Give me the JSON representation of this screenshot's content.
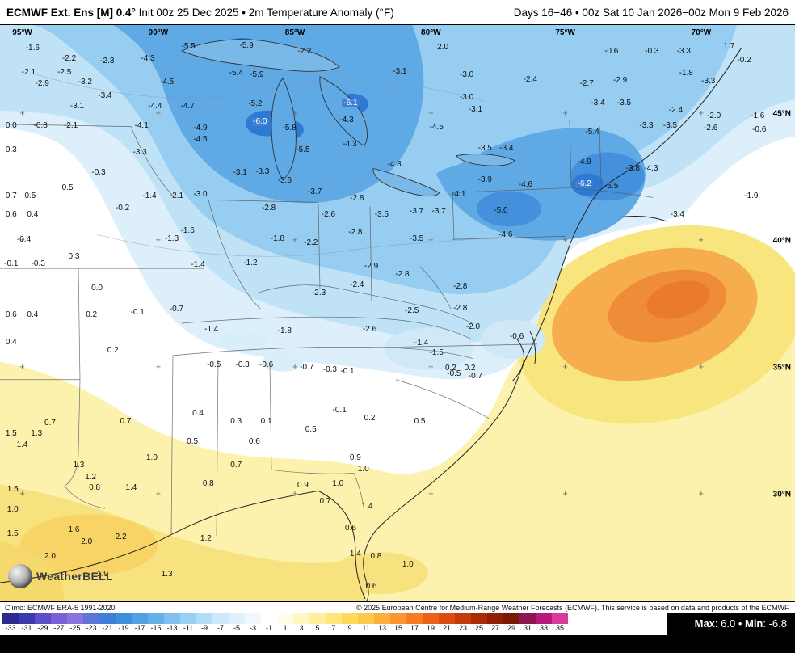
{
  "header": {
    "title_bold": "ECMWF Ext. Ens [M] 0.4°",
    "title_rest": " Init 00z 25 Dec 2025 • 2m Temperature Anomaly (°F)",
    "valid_range": "Days 16−46 • 00z Sat 10 Jan 2026−00z Mon 9 Feb 2026"
  },
  "logo": {
    "text": "WeatherBELL"
  },
  "attribution": {
    "left": "Climo: ECMWF ERA-5 1991-2020",
    "right": "© 2025 European Centre for Medium-Range Weather Forecasts (ECMWF). This service is based on data and products of the ECMWF."
  },
  "stats": {
    "max_label": "Max",
    "max_value": "6.0",
    "sep": "•",
    "min_label": "Min",
    "min_value": "-6.8"
  },
  "colorbar": {
    "ticks": [
      "-33",
      "-31",
      "-29",
      "-27",
      "-25",
      "-23",
      "-21",
      "-19",
      "-17",
      "-15",
      "-13",
      "-11",
      "-9",
      "-7",
      "-5",
      "-3",
      "-1",
      "1",
      "3",
      "5",
      "7",
      "9",
      "11",
      "13",
      "15",
      "17",
      "19",
      "21",
      "23",
      "25",
      "27",
      "29",
      "31",
      "33",
      "35"
    ],
    "colors": [
      "#2b2b8f",
      "#3a3aad",
      "#5a4fc8",
      "#7a62d6",
      "#8a74dc",
      "#5f74d8",
      "#3f7fd8",
      "#3b8fdd",
      "#50a0e2",
      "#66b0e8",
      "#7fc0ee",
      "#99cff2",
      "#b3dcf6",
      "#cce8fa",
      "#e0f1fc",
      "#f0f8fe",
      "#ffffff",
      "#fffde8",
      "#fff7c2",
      "#ffef9c",
      "#ffe678",
      "#ffd95c",
      "#fec84b",
      "#fdb03c",
      "#fb952e",
      "#f67b22",
      "#ea6118",
      "#d94b10",
      "#c2390b",
      "#a82b07",
      "#8f2005",
      "#7a1804",
      "#8f1550",
      "#b81a7a",
      "#d93a9c"
    ]
  },
  "map": {
    "lon_labels": [
      {
        "text": "95°W",
        "x": 2.8
      },
      {
        "text": "90°W",
        "x": 19.9
      },
      {
        "text": "85°W",
        "x": 37.1
      },
      {
        "text": "80°W",
        "x": 54.2
      },
      {
        "text": "75°W",
        "x": 71.1
      },
      {
        "text": "70°W",
        "x": 88.2
      }
    ],
    "lat_labels": [
      {
        "text": "45°N",
        "y": 15.4
      },
      {
        "text": "40°N",
        "y": 37.5
      },
      {
        "text": "35°N",
        "y": 59.4
      },
      {
        "text": "30°N",
        "y": 81.5
      }
    ],
    "grid": {
      "lon_pct": [
        2.8,
        19.9,
        37.1,
        54.2,
        71.1,
        88.2
      ],
      "lat_pct": [
        15.4,
        37.5,
        59.4,
        81.5
      ]
    },
    "values": [
      {
        "v": "-1.6",
        "x": 4.1,
        "y": 4.1
      },
      {
        "v": "-2.2",
        "x": 8.7,
        "y": 5.9
      },
      {
        "v": "-2.3",
        "x": 13.5,
        "y": 6.3
      },
      {
        "v": "-4.3",
        "x": 18.6,
        "y": 5.9
      },
      {
        "v": "-5.5",
        "x": 23.7,
        "y": 3.8
      },
      {
        "v": "-5.9",
        "x": 31.0,
        "y": 3.6
      },
      {
        "v": "-2.2",
        "x": 38.3,
        "y": 4.6
      },
      {
        "v": "2.0",
        "x": 55.7,
        "y": 3.9
      },
      {
        "v": "-0.6",
        "x": 76.9,
        "y": 4.6
      },
      {
        "v": "-0.3",
        "x": 82.0,
        "y": 4.6
      },
      {
        "v": "-3.3",
        "x": 86.0,
        "y": 4.6
      },
      {
        "v": "1.7",
        "x": 91.7,
        "y": 3.8
      },
      {
        "v": "-0.2",
        "x": 93.6,
        "y": 6.2
      },
      {
        "v": "-2.1",
        "x": 3.6,
        "y": 8.3
      },
      {
        "v": "-2.5",
        "x": 8.1,
        "y": 8.3
      },
      {
        "v": "-2.9",
        "x": 5.3,
        "y": 10.2
      },
      {
        "v": "-3.2",
        "x": 10.7,
        "y": 9.9
      },
      {
        "v": "-4.5",
        "x": 21.0,
        "y": 9.9
      },
      {
        "v": "-5.4",
        "x": 29.7,
        "y": 8.4
      },
      {
        "v": "-5.9",
        "x": 32.3,
        "y": 8.7
      },
      {
        "v": "-3.1",
        "x": 50.3,
        "y": 8.1
      },
      {
        "v": "-3.0",
        "x": 58.7,
        "y": 8.7
      },
      {
        "v": "-2.4",
        "x": 66.7,
        "y": 9.5
      },
      {
        "v": "-2.7",
        "x": 73.8,
        "y": 10.2
      },
      {
        "v": "-2.9",
        "x": 78.0,
        "y": 9.7
      },
      {
        "v": "-1.8",
        "x": 86.3,
        "y": 8.4
      },
      {
        "v": "-3.3",
        "x": 89.1,
        "y": 9.8
      },
      {
        "v": "-3.1",
        "x": 9.7,
        "y": 14.1
      },
      {
        "v": "-3.4",
        "x": 13.2,
        "y": 12.3
      },
      {
        "v": "-4.4",
        "x": 19.5,
        "y": 14.1
      },
      {
        "v": "-4.7",
        "x": 23.6,
        "y": 14.1
      },
      {
        "v": "-5.2",
        "x": 32.1,
        "y": 13.7
      },
      {
        "v": "-6.0",
        "x": 32.7,
        "y": 16.8,
        "hl": true
      },
      {
        "v": "-5.8",
        "x": 36.4,
        "y": 17.9
      },
      {
        "v": "-6.1",
        "x": 44.1,
        "y": 13.6,
        "hl": true
      },
      {
        "v": "-4.3",
        "x": 43.6,
        "y": 16.6
      },
      {
        "v": "-4.5",
        "x": 54.9,
        "y": 17.8
      },
      {
        "v": "-3.0",
        "x": 58.7,
        "y": 12.6
      },
      {
        "v": "-3.1",
        "x": 59.8,
        "y": 14.7
      },
      {
        "v": "-3.4",
        "x": 75.2,
        "y": 13.6
      },
      {
        "v": "-3.5",
        "x": 78.5,
        "y": 13.6
      },
      {
        "v": "-2.4",
        "x": 85.0,
        "y": 14.8
      },
      {
        "v": "-2.0",
        "x": 89.8,
        "y": 15.8
      },
      {
        "v": "-1.6",
        "x": 95.3,
        "y": 15.8
      },
      {
        "v": "0.0",
        "x": 1.4,
        "y": 17.6
      },
      {
        "v": "-0.8",
        "x": 5.1,
        "y": 17.6
      },
      {
        "v": "-2.1",
        "x": 8.9,
        "y": 17.6
      },
      {
        "v": "-4.1",
        "x": 17.8,
        "y": 17.5
      },
      {
        "v": "-4.9",
        "x": 25.2,
        "y": 17.9
      },
      {
        "v": "-4.5",
        "x": 25.2,
        "y": 19.9
      },
      {
        "v": "-5.5",
        "x": 38.1,
        "y": 21.7
      },
      {
        "v": "-5.4",
        "x": 74.5,
        "y": 18.6
      },
      {
        "v": "-3.3",
        "x": 81.3,
        "y": 17.6
      },
      {
        "v": "-3.5",
        "x": 84.3,
        "y": 17.6
      },
      {
        "v": "-2.6",
        "x": 89.4,
        "y": 17.9
      },
      {
        "v": "-0.6",
        "x": 95.5,
        "y": 18.2
      },
      {
        "v": "0.3",
        "x": 1.4,
        "y": 21.8
      },
      {
        "v": "-3.3",
        "x": 17.6,
        "y": 22.1
      },
      {
        "v": "-4.3",
        "x": 44.0,
        "y": 20.8
      },
      {
        "v": "-3.5",
        "x": 61.0,
        "y": 21.5
      },
      {
        "v": "-3.4",
        "x": 63.7,
        "y": 21.5
      },
      {
        "v": "-0.3",
        "x": 12.4,
        "y": 25.7
      },
      {
        "v": "0.5",
        "x": 8.5,
        "y": 28.4
      },
      {
        "v": "-3.1",
        "x": 30.2,
        "y": 25.6
      },
      {
        "v": "-3.3",
        "x": 33.0,
        "y": 25.5
      },
      {
        "v": "-3.6",
        "x": 35.8,
        "y": 27.1
      },
      {
        "v": "-4.8",
        "x": 49.6,
        "y": 24.2
      },
      {
        "v": "-3.9",
        "x": 61.0,
        "y": 26.9
      },
      {
        "v": "-4.6",
        "x": 66.1,
        "y": 27.8
      },
      {
        "v": "-4.9",
        "x": 73.5,
        "y": 23.9
      },
      {
        "v": "-3.8",
        "x": 79.6,
        "y": 24.9
      },
      {
        "v": "-4.3",
        "x": 81.9,
        "y": 24.9
      },
      {
        "v": "0.7",
        "x": 1.4,
        "y": 29.8
      },
      {
        "v": "0.5",
        "x": 3.8,
        "y": 29.8
      },
      {
        "v": "-1.4",
        "x": 18.8,
        "y": 29.7
      },
      {
        "v": "-2.1",
        "x": 22.2,
        "y": 29.7
      },
      {
        "v": "-3.0",
        "x": 25.2,
        "y": 29.4
      },
      {
        "v": "-3.7",
        "x": 39.6,
        "y": 29.1
      },
      {
        "v": "-2.8",
        "x": 44.9,
        "y": 30.1
      },
      {
        "v": "-4.1",
        "x": 57.7,
        "y": 29.5
      },
      {
        "v": "-5.0",
        "x": 63.0,
        "y": 32.2
      },
      {
        "v": "-6.2",
        "x": 73.5,
        "y": 27.6,
        "hl": true
      },
      {
        "v": "-5.5",
        "x": 76.9,
        "y": 28.1
      },
      {
        "v": "-1.9",
        "x": 94.5,
        "y": 29.7
      },
      {
        "v": "0.6",
        "x": 1.4,
        "y": 32.9
      },
      {
        "v": "0.4",
        "x": 4.1,
        "y": 32.9
      },
      {
        "v": "-0.2",
        "x": 15.4,
        "y": 31.9
      },
      {
        "v": "-2.8",
        "x": 33.8,
        "y": 31.9
      },
      {
        "v": "-2.6",
        "x": 41.3,
        "y": 32.9
      },
      {
        "v": "-3.5",
        "x": 48.0,
        "y": 32.9
      },
      {
        "v": "-3.7",
        "x": 52.4,
        "y": 32.4
      },
      {
        "v": "-3.7",
        "x": 55.2,
        "y": 32.4
      },
      {
        "v": "-3.4",
        "x": 85.2,
        "y": 32.9
      },
      {
        "v": "-0.4",
        "x": 3.0,
        "y": 37.3
      },
      {
        "v": "-1.6",
        "x": 23.6,
        "y": 35.7
      },
      {
        "v": "-1.3",
        "x": 21.6,
        "y": 37.1
      },
      {
        "v": "-1.8",
        "x": 34.9,
        "y": 37.2
      },
      {
        "v": "-2.2",
        "x": 39.1,
        "y": 37.8
      },
      {
        "v": "-2.8",
        "x": 44.7,
        "y": 36.1
      },
      {
        "v": "-3.5",
        "x": 52.4,
        "y": 37.2
      },
      {
        "v": "-4.6",
        "x": 63.6,
        "y": 36.5
      },
      {
        "v": "-0.1",
        "x": 1.4,
        "y": 41.5
      },
      {
        "v": "-0.3",
        "x": 4.8,
        "y": 41.5
      },
      {
        "v": "0.3",
        "x": 9.3,
        "y": 40.3
      },
      {
        "v": "-1.4",
        "x": 24.9,
        "y": 41.7
      },
      {
        "v": "-1.2",
        "x": 31.5,
        "y": 41.4
      },
      {
        "v": "-2.9",
        "x": 46.7,
        "y": 42.0
      },
      {
        "v": "-2.8",
        "x": 50.6,
        "y": 43.4
      },
      {
        "v": "0.0",
        "x": 12.2,
        "y": 45.7
      },
      {
        "v": "-2.3",
        "x": 40.1,
        "y": 46.6
      },
      {
        "v": "-2.4",
        "x": 44.9,
        "y": 45.2
      },
      {
        "v": "-2.8",
        "x": 57.9,
        "y": 45.5
      },
      {
        "v": "-2.5",
        "x": 51.8,
        "y": 49.7
      },
      {
        "v": "-2.8",
        "x": 57.9,
        "y": 49.2
      },
      {
        "v": "0.6",
        "x": 1.4,
        "y": 50.3
      },
      {
        "v": "0.4",
        "x": 4.1,
        "y": 50.3
      },
      {
        "v": "0.2",
        "x": 11.5,
        "y": 50.3
      },
      {
        "v": "-0.1",
        "x": 17.3,
        "y": 49.9
      },
      {
        "v": "-0.7",
        "x": 22.2,
        "y": 49.4
      },
      {
        "v": "-1.4",
        "x": 26.6,
        "y": 52.9
      },
      {
        "v": "-1.8",
        "x": 35.8,
        "y": 53.1
      },
      {
        "v": "-2.6",
        "x": 46.5,
        "y": 52.9
      },
      {
        "v": "-2.0",
        "x": 59.5,
        "y": 52.4
      },
      {
        "v": "-0.6",
        "x": 65.0,
        "y": 54.1
      },
      {
        "v": "-1.4",
        "x": 53.0,
        "y": 55.2
      },
      {
        "v": "-1.5",
        "x": 54.9,
        "y": 56.9
      },
      {
        "v": "0.4",
        "x": 1.4,
        "y": 55.1
      },
      {
        "v": "0.2",
        "x": 14.2,
        "y": 56.5
      },
      {
        "v": "-0.5",
        "x": 26.9,
        "y": 59.0
      },
      {
        "v": "-0.3",
        "x": 30.5,
        "y": 59.0
      },
      {
        "v": "-0.6",
        "x": 33.5,
        "y": 59.0
      },
      {
        "v": "-0.7",
        "x": 38.6,
        "y": 59.4
      },
      {
        "v": "-0.3",
        "x": 41.5,
        "y": 59.9
      },
      {
        "v": "-0.1",
        "x": 43.7,
        "y": 60.1
      },
      {
        "v": "0.2",
        "x": 56.7,
        "y": 59.6
      },
      {
        "v": "0.2",
        "x": 59.1,
        "y": 59.6
      },
      {
        "v": "-0.5",
        "x": 57.1,
        "y": 60.6
      },
      {
        "v": "-0.7",
        "x": 59.8,
        "y": 61.0
      },
      {
        "v": "0.7",
        "x": 6.3,
        "y": 69.1
      },
      {
        "v": "1.5",
        "x": 1.4,
        "y": 70.9
      },
      {
        "v": "1.3",
        "x": 4.6,
        "y": 71.0
      },
      {
        "v": "1.4",
        "x": 2.8,
        "y": 72.9
      },
      {
        "v": "0.7",
        "x": 15.8,
        "y": 68.8
      },
      {
        "v": "0.4",
        "x": 24.9,
        "y": 67.4
      },
      {
        "v": "0.3",
        "x": 29.7,
        "y": 68.8
      },
      {
        "v": "0.1",
        "x": 33.5,
        "y": 68.8
      },
      {
        "v": "0.5",
        "x": 39.1,
        "y": 70.3
      },
      {
        "v": "-0.1",
        "x": 42.7,
        "y": 66.9
      },
      {
        "v": "0.2",
        "x": 46.5,
        "y": 68.3
      },
      {
        "v": "0.5",
        "x": 52.8,
        "y": 68.8
      },
      {
        "v": "0.5",
        "x": 24.2,
        "y": 72.4
      },
      {
        "v": "0.6",
        "x": 32.0,
        "y": 72.4
      },
      {
        "v": "0.7",
        "x": 29.7,
        "y": 76.4
      },
      {
        "v": "0.9",
        "x": 44.7,
        "y": 75.2
      },
      {
        "v": "1.0",
        "x": 45.7,
        "y": 77.1
      },
      {
        "v": "1.0",
        "x": 19.1,
        "y": 75.2
      },
      {
        "v": "1.3",
        "x": 9.9,
        "y": 76.5
      },
      {
        "v": "1.2",
        "x": 11.4,
        "y": 78.5
      },
      {
        "v": "0.8",
        "x": 11.9,
        "y": 80.4
      },
      {
        "v": "1.5",
        "x": 1.6,
        "y": 80.7
      },
      {
        "v": "1.4",
        "x": 16.5,
        "y": 80.4
      },
      {
        "v": "0.8",
        "x": 26.2,
        "y": 79.7
      },
      {
        "v": "0.9",
        "x": 38.1,
        "y": 80.0
      },
      {
        "v": "1.0",
        "x": 42.5,
        "y": 79.7
      },
      {
        "v": "0.7",
        "x": 40.9,
        "y": 82.8
      },
      {
        "v": "1.4",
        "x": 46.2,
        "y": 83.6
      },
      {
        "v": "0.6",
        "x": 44.1,
        "y": 87.4
      },
      {
        "v": "1.0",
        "x": 1.6,
        "y": 84.2
      },
      {
        "v": "1.5",
        "x": 1.6,
        "y": 88.4
      },
      {
        "v": "1.6",
        "x": 9.3,
        "y": 87.7
      },
      {
        "v": "2.0",
        "x": 10.9,
        "y": 89.7
      },
      {
        "v": "2.2",
        "x": 15.2,
        "y": 88.9
      },
      {
        "v": "1.2",
        "x": 25.9,
        "y": 89.2
      },
      {
        "v": "2.0",
        "x": 6.3,
        "y": 92.3
      },
      {
        "v": "1.9",
        "x": 12.9,
        "y": 95.4
      },
      {
        "v": "1.3",
        "x": 21.0,
        "y": 95.4
      },
      {
        "v": "1.4",
        "x": 44.7,
        "y": 91.9
      },
      {
        "v": "0.8",
        "x": 47.3,
        "y": 92.3
      },
      {
        "v": "1.0",
        "x": 51.3,
        "y": 93.7
      },
      {
        "v": "0.6",
        "x": 46.7,
        "y": 97.5
      }
    ]
  }
}
